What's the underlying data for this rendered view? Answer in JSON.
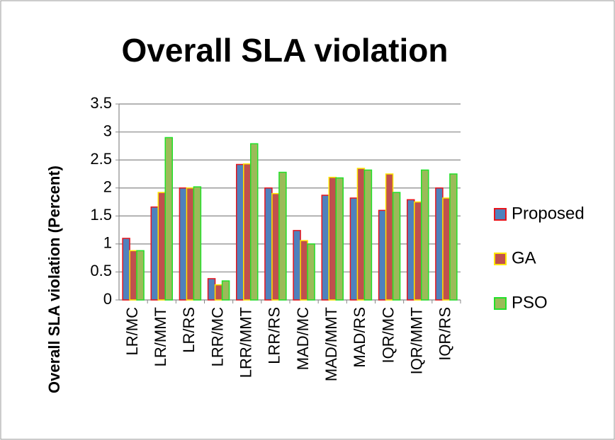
{
  "chart_data": {
    "type": "bar",
    "title": "Overall SLA violation",
    "ylabel": "Overall SLA violation  (Percent)",
    "categories": [
      "LR/MC",
      "LR/MMT",
      "LR/RS",
      "LRR/MC",
      "LRR/MMT",
      "LRR/RS",
      "MAD/MC",
      "MAD/MMT",
      "MAD/RS",
      "IQR/MC",
      "IQR/MMT",
      "IQR/RS"
    ],
    "series": [
      {
        "name": "Proposed",
        "color": "#4f81bd",
        "edgecolor": "#e8141b",
        "values": [
          1.1,
          1.66,
          2.0,
          0.38,
          2.42,
          2.0,
          1.24,
          1.87,
          1.82,
          1.6,
          1.79,
          2.0
        ]
      },
      {
        "name": "GA",
        "color": "#c0504d",
        "edgecolor": "#ffe600",
        "values": [
          0.88,
          1.92,
          2.0,
          0.27,
          2.43,
          1.9,
          1.06,
          2.19,
          2.35,
          2.25,
          1.75,
          1.82
        ]
      },
      {
        "name": "PSO",
        "color": "#9bbb59",
        "edgecolor": "#22e02a",
        "values": [
          0.88,
          2.9,
          2.02,
          0.34,
          2.79,
          2.28,
          1.0,
          2.18,
          2.32,
          1.92,
          2.32,
          2.25
        ]
      }
    ],
    "ylim": [
      0,
      3.5
    ],
    "yticks": [
      0,
      0.5,
      1,
      1.5,
      2,
      2.5,
      3,
      3.5
    ],
    "grid": true,
    "legend": "right"
  }
}
